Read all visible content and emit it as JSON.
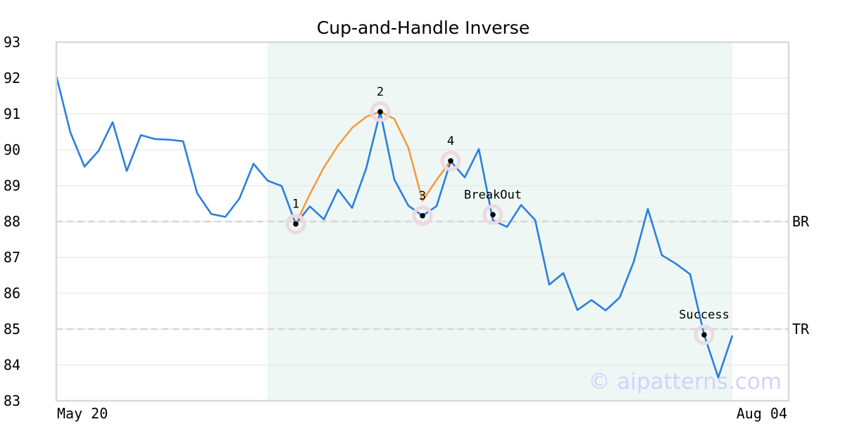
{
  "chart_data": {
    "type": "line",
    "title": "Cup-and-Handle Inverse",
    "xlabel": "",
    "ylabel": "",
    "ylim": [
      83,
      93
    ],
    "y_ticks": [
      83,
      84,
      85,
      86,
      87,
      88,
      89,
      90,
      91,
      92,
      93
    ],
    "x_tick_labels": [
      "May 20",
      "Aug 04"
    ],
    "x_range": [
      0,
      48
    ],
    "grid": true,
    "pattern_region": [
      15,
      48
    ],
    "series": [
      {
        "values": [
          92.06,
          90.48,
          89.53,
          89.97,
          90.77,
          89.41,
          90.41,
          90.3,
          90.28,
          90.24,
          88.79,
          88.21,
          88.13,
          88.64,
          89.61,
          89.14,
          88.99,
          87.93,
          88.42,
          88.06,
          88.89,
          88.38,
          89.48,
          91.06,
          89.17,
          88.44,
          88.16,
          88.43,
          89.68,
          89.23,
          90.02,
          88.03,
          87.85,
          88.46,
          88.04,
          86.24,
          86.56,
          85.53,
          85.81,
          85.52,
          85.88,
          86.88,
          88.35,
          87.06,
          86.82,
          86.53,
          84.84,
          83.65,
          84.82
        ]
      }
    ],
    "cup_curve": {
      "x": [
        17,
        18,
        19,
        20,
        21,
        22,
        23,
        24,
        25,
        26,
        27,
        28
      ],
      "values": [
        87.93,
        88.76,
        89.51,
        90.12,
        90.61,
        90.92,
        91.06,
        90.86,
        90.05,
        88.58,
        89.16,
        89.69
      ]
    },
    "levels": [
      {
        "label": "BR",
        "value": 88.0
      },
      {
        "label": "TR",
        "value": 85.0
      }
    ],
    "markers": [
      {
        "label": "1",
        "x": 17,
        "value": 87.93
      },
      {
        "label": "2",
        "x": 23,
        "value": 91.06
      },
      {
        "label": "3",
        "x": 26,
        "value": 88.16
      },
      {
        "label": "4",
        "x": 28,
        "value": 89.69
      },
      {
        "label": "BreakOut",
        "x": 31,
        "value": 88.19
      },
      {
        "label": "Success",
        "x": 46,
        "value": 84.84
      }
    ],
    "watermark": "© aipatterns.com",
    "colors": {
      "line": "#2a7fdf",
      "cup": "#f39b45",
      "region": "#eef7f3",
      "grid": "#e3e3e3",
      "level": "#d6d6d6",
      "marker_halo": "#ecd9e1",
      "marker_dot": "#000000",
      "watermark": "#cfd3ff",
      "axis": "#d9d9d9"
    }
  }
}
